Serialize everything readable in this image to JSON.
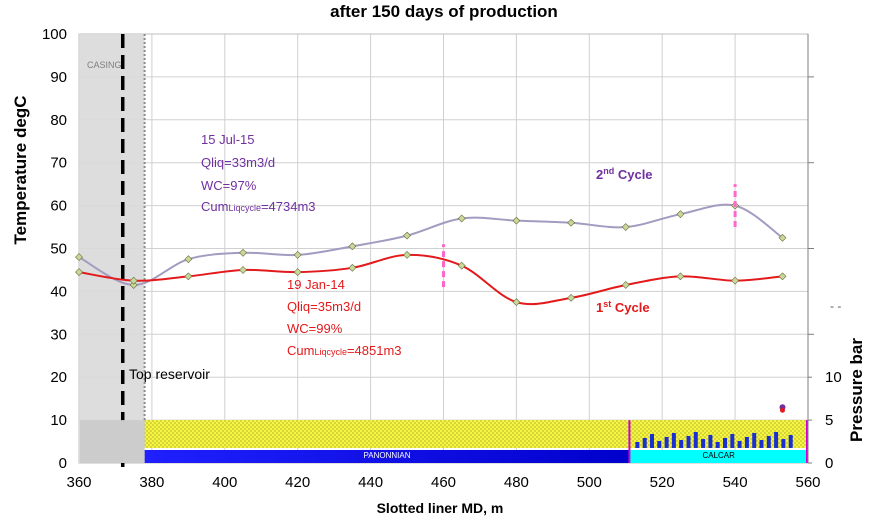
{
  "chart_data": {
    "type": "line",
    "title": "after 150 days of production",
    "xlabel": "Slotted liner MD, m",
    "ylabel": "Temperature degC",
    "y2label": "Pressure bar",
    "xlim": [
      360,
      560
    ],
    "ylim": [
      0,
      100
    ],
    "x_ticks": [
      360,
      380,
      400,
      420,
      440,
      460,
      480,
      500,
      520,
      540,
      560
    ],
    "y_ticks": [
      0,
      10,
      20,
      30,
      40,
      50,
      60,
      70,
      80,
      90,
      100
    ],
    "y2_ticks": [
      0,
      5,
      10
    ],
    "grid": true,
    "series": [
      {
        "label": "2nd Cycle",
        "color": "#a49bc0",
        "marker_color": "#c8d89a",
        "x": [
          360,
          375,
          390,
          405,
          420,
          435,
          450,
          465,
          480,
          495,
          510,
          525,
          540,
          553
        ],
        "y": [
          48,
          41.5,
          47.5,
          49,
          48.5,
          50.5,
          53,
          57,
          56.5,
          56,
          55,
          58,
          60,
          52.5
        ]
      },
      {
        "label": "1st Cycle",
        "color": "#e31a1c",
        "marker_color": "#c8d89a",
        "x": [
          360,
          375,
          390,
          405,
          420,
          435,
          450,
          465,
          480,
          495,
          510,
          525,
          540,
          553
        ],
        "y": [
          44.5,
          42.5,
          43.5,
          45,
          44.5,
          45.5,
          48.5,
          46,
          37.5,
          38.5,
          41.5,
          43.5,
          42.5,
          43.5
        ]
      }
    ],
    "cycle_markers": [
      {
        "x": 460,
        "y_from": 41,
        "y_to": 51,
        "color": "#ff66cc"
      },
      {
        "x": 540,
        "y_from": 55,
        "y_to": 65,
        "color": "#ff66cc"
      }
    ],
    "annotations": {
      "cycle2_label": "2",
      "cycle2_sup": "nd",
      "cycle2_rest": " Cycle",
      "cycle1_label": "1",
      "cycle1_sup": "st",
      "cycle1_rest": " Cycle",
      "cycle2_info": {
        "date": "15 Jul-15",
        "qliq": "Qliq=33m3/d",
        "wc": "WC=97%",
        "cum_prefix": "Cum",
        "cum_sub": "Liqcycle",
        "cum_value": "=4734m3"
      },
      "cycle1_info": {
        "date": "19 Jan-14",
        "qliq": "Qliq=35m3/d",
        "wc": "WC=99%",
        "cum_prefix": "Cum",
        "cum_sub": "Liqcycle",
        "cum_value": "=4851m3"
      },
      "casing": "CASING",
      "top_reservoir": "Top reservoir",
      "panonnian": "PANONNIAN",
      "calcar": "CALCAR",
      "dash_mark": "- -"
    },
    "casing_zone": {
      "x_from": 360,
      "x_to": 378
    },
    "top_reservoir_x": 372,
    "formations": [
      {
        "name": "PANONNIAN",
        "x_from": 378,
        "x_to": 511,
        "color": "#f5f542"
      },
      {
        "name": "CALCAR",
        "x_from": 511,
        "x_to": 560,
        "color": "#00ffff"
      }
    ],
    "colors": {
      "purple_text": "#7030a0",
      "red_text": "#e31a1c",
      "grid": "#d0d0d0",
      "casing": "#d9d9d9"
    }
  }
}
